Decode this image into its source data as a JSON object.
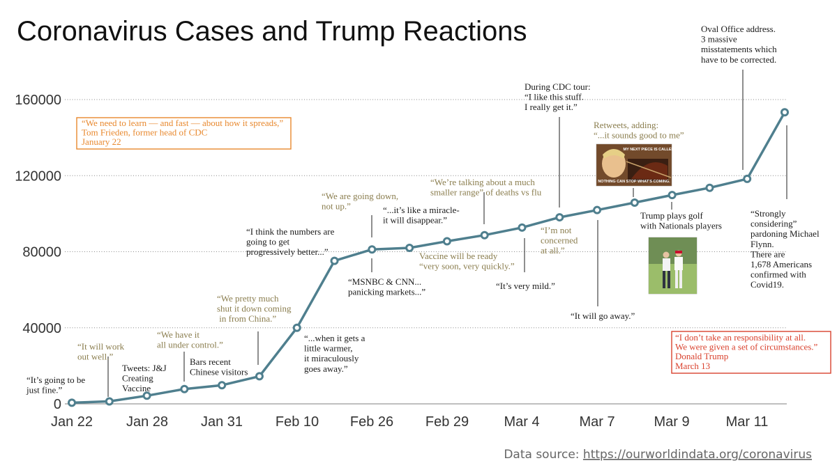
{
  "colors": {
    "line": "#4f7f8e",
    "quote": "#8a7d4e",
    "statement": "#1a1a1a",
    "orange": "#e8882e",
    "red": "#d9412d"
  },
  "chart_data": {
    "type": "line",
    "title": "Coronavirus Cases and Trump Reactions",
    "xlabel": "",
    "ylabel": "",
    "ylim": [
      0,
      160000
    ],
    "grid": true,
    "x_ticks": [
      "Jan 22",
      "Jan 28",
      "Jan 31",
      "Feb 10",
      "Feb 26",
      "Feb 29",
      "Mar 4",
      "Mar 7",
      "Mar 9",
      "Mar 11"
    ],
    "y_ticks": [
      0,
      40000,
      80000,
      120000,
      160000
    ],
    "series": [
      {
        "name": "Coronavirus cases",
        "values": [
          600,
          1300,
          4300,
          7800,
          9800,
          14500,
          40000,
          75200,
          81200,
          82000,
          85500,
          88700,
          92700,
          98100,
          101900,
          105800,
          109800,
          113600,
          118300,
          153300
        ]
      }
    ],
    "annotations": [
      {
        "id": "fine",
        "point": 0,
        "lines": [
          "“It’s going to be",
          "just fine.”"
        ],
        "color": "statement"
      },
      {
        "id": "workout",
        "point": 1,
        "lines": [
          "“It will work",
          "out well.”"
        ],
        "color": "quote"
      },
      {
        "id": "jj",
        "point": 2,
        "lines": [
          "Tweets: J&J",
          "Creating",
          "Vaccine"
        ],
        "color": "statement"
      },
      {
        "id": "control",
        "point": 3,
        "lines": [
          "“We have it",
          "all under control.”"
        ],
        "color": "quote"
      },
      {
        "id": "bars",
        "point": 4,
        "lines": [
          "Bars recent",
          "Chinese visitors"
        ],
        "color": "statement"
      },
      {
        "id": "china",
        "point": 5,
        "lines": [
          "“We pretty much",
          "shut it down coming",
          " in from China.”"
        ],
        "color": "quote"
      },
      {
        "id": "warmer",
        "point": 6,
        "lines": [
          "“...when it gets a",
          "little warmer,",
          "it miraculously",
          "goes away.”"
        ],
        "color": "statement"
      },
      {
        "id": "better",
        "point": 7,
        "lines": [
          "“I think the numbers are",
          "going to get",
          "progressively better...”"
        ],
        "color": "statement"
      },
      {
        "id": "godown",
        "point": 8,
        "lines": [
          "“We are going down,",
          "not up.”"
        ],
        "color": "quote"
      },
      {
        "id": "msnbc",
        "point": 8,
        "lines": [
          "“MSNBC & CNN...",
          "panicking markets...”"
        ],
        "color": "statement"
      },
      {
        "id": "miracle",
        "point": 9,
        "lines": [
          "“...it’s like a miracle-",
          "it will disappear.”"
        ],
        "color": "statement"
      },
      {
        "id": "vaccine",
        "point": 10,
        "lines": [
          "Vaccine will  be ready",
          "“very soon, very quickly.”"
        ],
        "color": "quote"
      },
      {
        "id": "range",
        "point": 11,
        "lines": [
          "“We’re talking about a much",
          "smaller range” of deaths vs flu"
        ],
        "color": "quote"
      },
      {
        "id": "mild",
        "point": 12,
        "lines": [
          "“It’s very mild.”"
        ],
        "color": "statement"
      },
      {
        "id": "cdc",
        "point": 13,
        "lines": [
          "During CDC tour:",
          "“I like this stuff.",
          "I really get it.”"
        ],
        "color": "statement"
      },
      {
        "id": "concerned",
        "point": 13,
        "lines": [
          "“I’m not",
          "concerned",
          "at all.”"
        ],
        "color": "quote"
      },
      {
        "id": "goaway",
        "point": 14,
        "lines": [
          "“It will go away.”"
        ],
        "color": "statement"
      },
      {
        "id": "retweets",
        "point": 15,
        "lines": [
          "Retweets, adding:",
          "“...it sounds good to me”"
        ],
        "color": "quote"
      },
      {
        "id": "golf",
        "point": 16,
        "lines": [
          "Trump plays golf",
          "with Nationals players"
        ],
        "color": "statement"
      },
      {
        "id": "oval",
        "point": 18,
        "lines": [
          "Oval Office address.",
          "3 massive",
          "misstatements which",
          "have to be corrected."
        ],
        "color": "statement"
      },
      {
        "id": "flynn",
        "point": 19,
        "lines": [
          "“Strongly",
          "considering”",
          "pardoning Michael",
          "Flynn.",
          "There are",
          "1,678 Americans",
          "confirmed with",
          "Covid19."
        ],
        "color": "statement"
      }
    ],
    "boxes": [
      {
        "id": "frieden",
        "lines": [
          "“We need to learn — and fast — about how it spreads,”",
          "Tom Frieden, former head of CDC",
          "January 22"
        ],
        "color": "orange"
      },
      {
        "id": "responsibility",
        "lines": [
          "“I don’t take an responsibility at all.",
          "We were given a set of circumstances.”",
          "Donald Trump",
          "March 13"
        ],
        "color": "red"
      }
    ],
    "images": [
      {
        "id": "meme",
        "caption_top": "MY NEXT PIECE IS CALLED",
        "caption_bottom": "NOTHING CAN STOP WHAT'S COMING."
      }
    ]
  },
  "footer": {
    "label": "Data source: ",
    "link": "https://ourworldindata.org/coronavirus"
  }
}
